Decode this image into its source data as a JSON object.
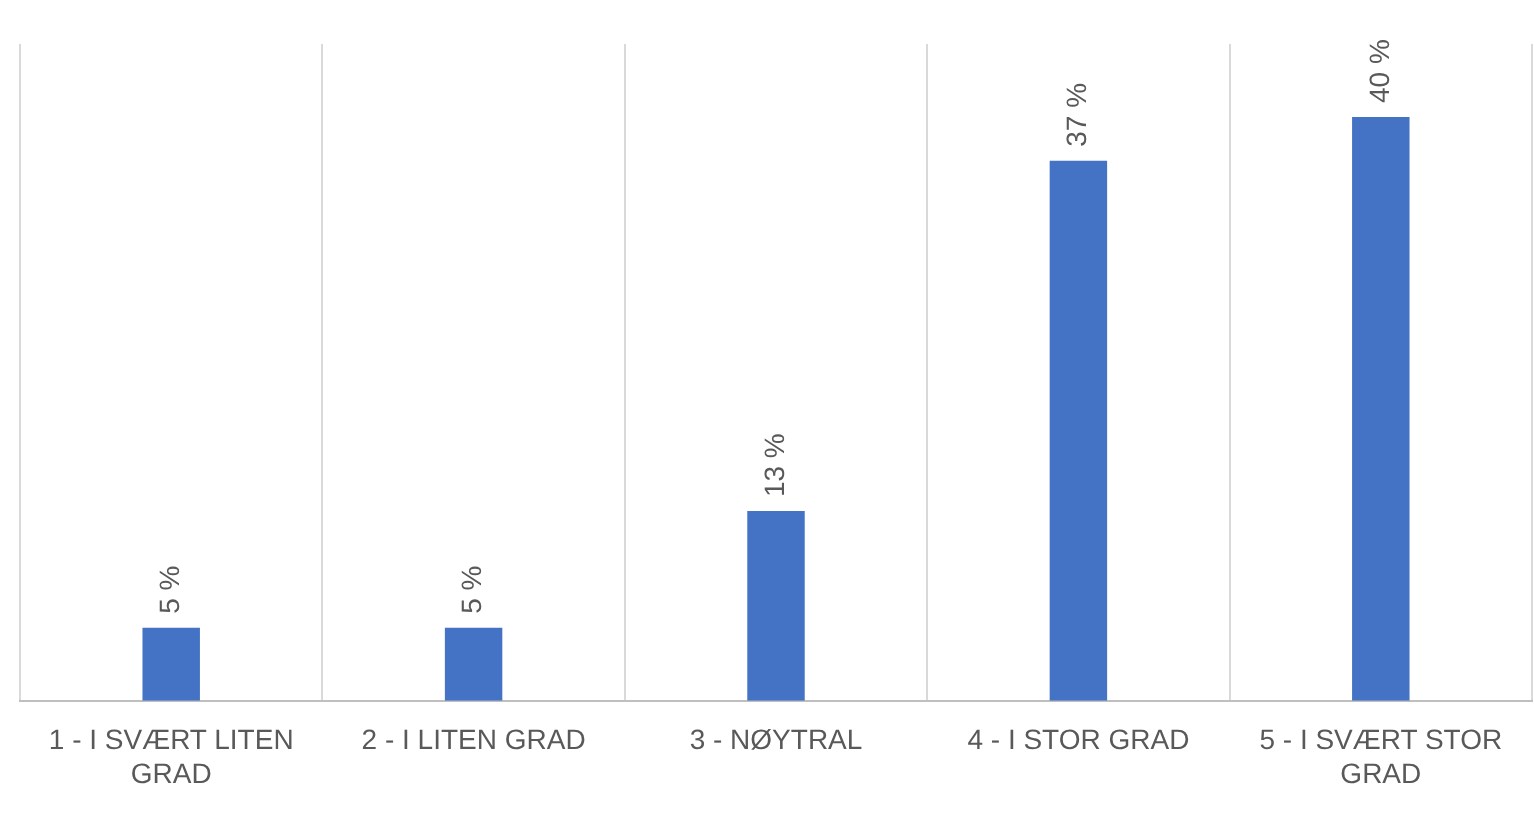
{
  "chart_data": {
    "type": "bar",
    "categories": [
      "1 - I SVÆRT LITEN GRAD",
      "2 - I LITEN GRAD",
      "3 - NØYTRAL",
      "4 - I STOR GRAD",
      "5 - I SVÆRT STOR GRAD"
    ],
    "values": [
      5,
      5,
      13,
      37,
      40
    ],
    "value_labels": [
      "5 %",
      "5 %",
      "13 %",
      "37 %",
      "40 %"
    ],
    "color": "#4472c4",
    "ylim": [
      0,
      45
    ],
    "grid": "x",
    "tick_labels": "x"
  }
}
